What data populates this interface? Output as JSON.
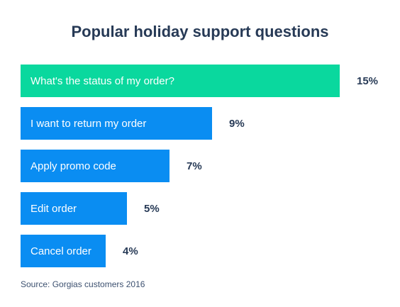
{
  "chart_data": {
    "type": "bar",
    "orientation": "horizontal",
    "title": "Popular holiday support questions",
    "categories": [
      "What's the status of my order?",
      "I want to return my order",
      "Apply promo code",
      "Edit order",
      "Cancel order"
    ],
    "values": [
      15,
      9,
      7,
      5,
      4
    ],
    "value_labels": [
      "15%",
      "9%",
      "7%",
      "5%",
      "4%"
    ],
    "colors": [
      "#0ad89e",
      "#0a8df2",
      "#0a8df2",
      "#0a8df2",
      "#0a8df2"
    ],
    "source": "Source: Gorgias customers 2016"
  }
}
